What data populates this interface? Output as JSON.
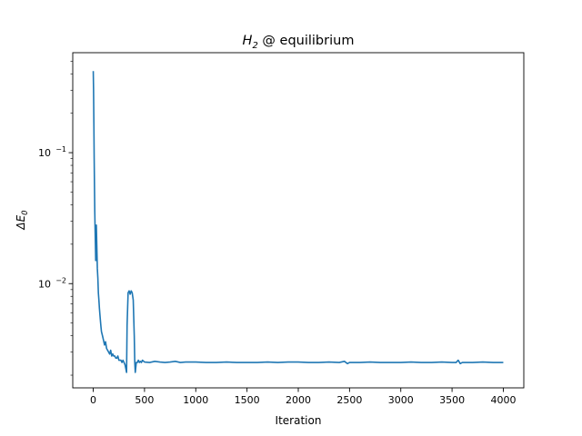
{
  "chart_data": {
    "type": "line",
    "title_prefix": "H",
    "title_subscript": "2",
    "title_suffix": " @ equilibrium",
    "xlabel": "Iteration",
    "ylabel_prefix": "ΔE",
    "ylabel_subscript": "0",
    "xlim": [
      -200,
      4200
    ],
    "ylim": [
      0.0016,
      0.58
    ],
    "yscale": "log",
    "grid": false,
    "line_color": "#1f77b4",
    "x_ticks": [
      0,
      500,
      1000,
      1500,
      2000,
      2500,
      3000,
      3500,
      4000
    ],
    "x_tick_labels": [
      "0",
      "500",
      "1000",
      "1500",
      "2000",
      "2500",
      "3000",
      "3500",
      "4000"
    ],
    "y_major_ticks": [
      {
        "value": 0.1,
        "base": "10",
        "exp": "−1"
      },
      {
        "value": 0.01,
        "base": "10",
        "exp": "−2"
      }
    ],
    "y_minor_ticks": [
      0.002,
      0.003,
      0.004,
      0.005,
      0.006,
      0.007,
      0.008,
      0.009,
      0.02,
      0.03,
      0.04,
      0.05,
      0.06,
      0.07,
      0.08,
      0.09,
      0.2,
      0.3,
      0.4,
      0.5
    ],
    "series": [
      {
        "x": [
          0,
          3,
          6,
          9,
          12,
          15,
          18,
          21,
          24,
          27,
          30,
          35,
          40,
          45,
          50,
          55,
          60,
          65,
          70,
          75,
          80,
          90,
          100,
          110,
          120,
          130,
          140,
          150,
          160,
          170,
          180,
          190,
          200,
          210,
          220,
          230,
          240,
          250,
          260,
          270,
          280,
          290,
          300,
          310,
          320,
          325,
          330,
          340,
          350,
          360,
          370,
          380,
          390,
          400,
          405,
          410,
          420,
          430,
          440,
          450,
          460,
          470,
          480,
          500,
          550,
          600,
          650,
          700,
          750,
          800,
          850,
          900,
          1000,
          1100,
          1200,
          1300,
          1400,
          1500,
          1600,
          1700,
          1800,
          1900,
          2000,
          2100,
          2200,
          2300,
          2400,
          2450,
          2480,
          2500,
          2600,
          2700,
          2800,
          2900,
          3000,
          3100,
          3200,
          3300,
          3400,
          3500,
          3540,
          3560,
          3580,
          3600,
          3700,
          3800,
          3900,
          4000
        ],
        "y": [
          0.42,
          0.3,
          0.17,
          0.09,
          0.055,
          0.035,
          0.026,
          0.02,
          0.015,
          0.022,
          0.028,
          0.019,
          0.013,
          0.011,
          0.0085,
          0.0075,
          0.0065,
          0.0058,
          0.0052,
          0.0047,
          0.0043,
          0.004,
          0.0037,
          0.0034,
          0.0036,
          0.0032,
          0.0031,
          0.003,
          0.0029,
          0.0031,
          0.0028,
          0.0029,
          0.0028,
          0.0028,
          0.0027,
          0.0027,
          0.0028,
          0.0026,
          0.0026,
          0.0026,
          0.0025,
          0.0026,
          0.0025,
          0.0024,
          0.0022,
          0.0021,
          0.0048,
          0.0085,
          0.0088,
          0.0083,
          0.0088,
          0.0085,
          0.0075,
          0.004,
          0.0025,
          0.0021,
          0.0025,
          0.0025,
          0.0026,
          0.0025,
          0.00255,
          0.0025,
          0.0026,
          0.00252,
          0.0025,
          0.00255,
          0.00252,
          0.0025,
          0.00252,
          0.00255,
          0.0025,
          0.00252,
          0.00252,
          0.0025,
          0.0025,
          0.00252,
          0.0025,
          0.0025,
          0.0025,
          0.00252,
          0.0025,
          0.00252,
          0.00252,
          0.0025,
          0.0025,
          0.00252,
          0.0025,
          0.00255,
          0.00245,
          0.0025,
          0.0025,
          0.00252,
          0.0025,
          0.0025,
          0.0025,
          0.00252,
          0.0025,
          0.0025,
          0.00252,
          0.0025,
          0.0025,
          0.0026,
          0.00245,
          0.0025,
          0.0025,
          0.00252,
          0.0025,
          0.0025
        ]
      }
    ]
  }
}
